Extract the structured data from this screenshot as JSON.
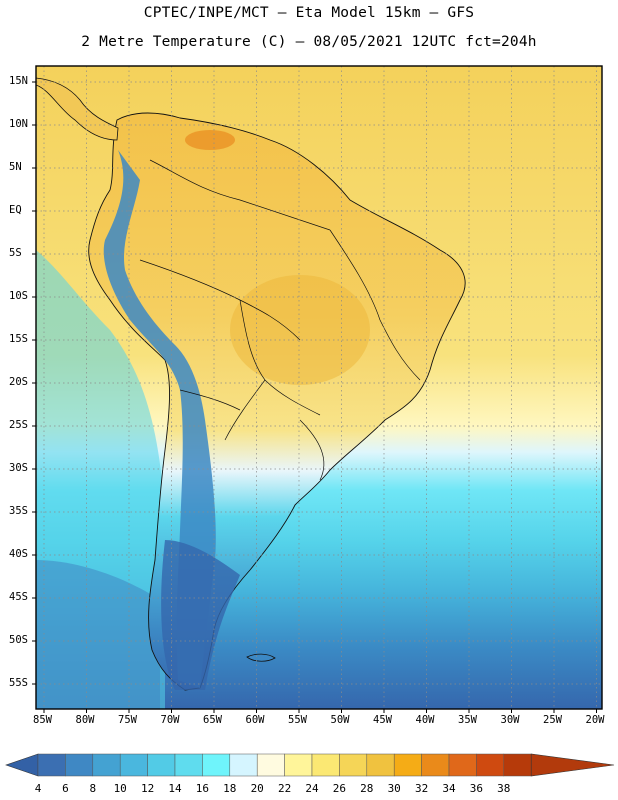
{
  "header": {
    "line1": "CPTEC/INPE/MCT –  Eta Model 15km – GFS",
    "line2": "2 Metre Temperature (C) – 08/05/2021 12UTC fct=204h"
  },
  "map": {
    "lat_labels": [
      "15N",
      "10N",
      "5N",
      "EQ",
      "5S",
      "10S",
      "15S",
      "20S",
      "25S",
      "30S",
      "35S",
      "40S",
      "45S",
      "50S",
      "55S"
    ],
    "lat_values": [
      15,
      10,
      5,
      0,
      -5,
      -10,
      -15,
      -20,
      -25,
      -30,
      -35,
      -40,
      -45,
      -50,
      -55
    ],
    "lon_labels": [
      "85W",
      "80W",
      "75W",
      "70W",
      "65W",
      "60W",
      "55W",
      "50W",
      "45W",
      "40W",
      "35W",
      "30W",
      "25W",
      "20W"
    ],
    "lon_values": [
      -85,
      -80,
      -75,
      -70,
      -65,
      -60,
      -55,
      -50,
      -45,
      -40,
      -35,
      -30,
      -25,
      -20
    ],
    "gridlines": "dotted"
  },
  "colorbar": {
    "labels": [
      "4",
      "6",
      "8",
      "10",
      "12",
      "14",
      "16",
      "18",
      "20",
      "22",
      "24",
      "26",
      "28",
      "30",
      "32",
      "34",
      "36",
      "38"
    ],
    "colors": [
      "#3b6fb2",
      "#3f88c4",
      "#44a2d2",
      "#4ab7de",
      "#52cbe6",
      "#5fdcee",
      "#6ff4fb",
      "#d5f5ff",
      "#fffbe0",
      "#fff59a",
      "#fbe873",
      "#f5d557",
      "#f0c23f",
      "#f5ac16",
      "#ea8a1a",
      "#e0681a",
      "#cf4a10",
      "#b63a0a"
    ],
    "low_cap_color": "#3361a6",
    "high_cap_color": "#b23a0c"
  }
}
